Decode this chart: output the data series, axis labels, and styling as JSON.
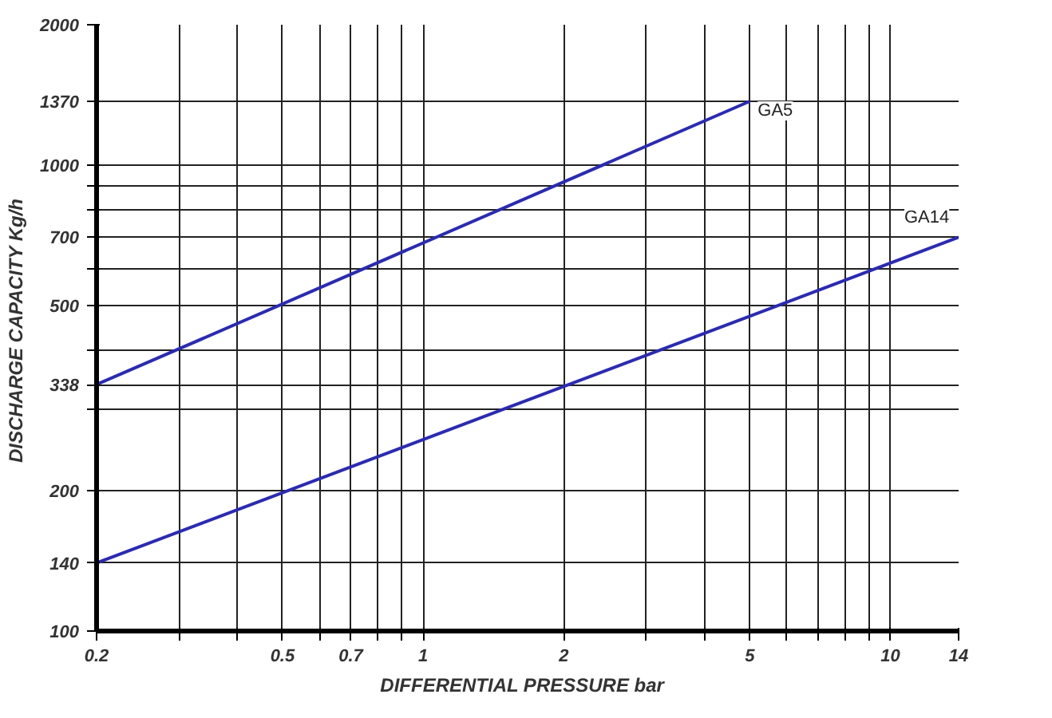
{
  "chart_data": {
    "type": "line",
    "xlabel": "DIFFERENTIAL PRESSURE   bar",
    "ylabel": "DISCHARGE CAPACITY  Kg/h",
    "log": "xy",
    "grid": true,
    "legend": false,
    "marker": "none",
    "line_style": "solid",
    "xlim": [
      0.2,
      14
    ],
    "ylim": [
      100,
      2000
    ],
    "xticks": [
      0.2,
      {
        "value": 0.3,
        "label": null
      },
      {
        "value": 0.4,
        "label": null
      },
      0.5,
      {
        "value": 0.6,
        "label": null
      },
      0.7,
      {
        "value": 0.8,
        "label": null
      },
      {
        "value": 0.9,
        "label": null
      },
      1,
      2,
      {
        "value": 3,
        "label": null
      },
      {
        "value": 4,
        "label": null
      },
      5,
      {
        "value": 6,
        "label": null
      },
      {
        "value": 7,
        "label": null
      },
      {
        "value": 8,
        "label": null
      },
      {
        "value": 9,
        "label": null
      },
      10,
      14
    ],
    "yticks": [
      100,
      140,
      200,
      {
        "value": 300,
        "label": null
      },
      338,
      {
        "value": 400,
        "label": null
      },
      500,
      {
        "value": 600,
        "label": null
      },
      700,
      {
        "value": 800,
        "label": null
      },
      {
        "value": 900,
        "label": null
      },
      1000,
      1370,
      2000
    ],
    "series": [
      {
        "name": "GA5",
        "color": "#2b2bb0",
        "x": [
          0.2,
          5
        ],
        "values": [
          338,
          1370
        ]
      },
      {
        "name": "GA14",
        "color": "#2b2bb0",
        "x": [
          0.2,
          14
        ],
        "values": [
          140,
          700
        ]
      }
    ]
  }
}
